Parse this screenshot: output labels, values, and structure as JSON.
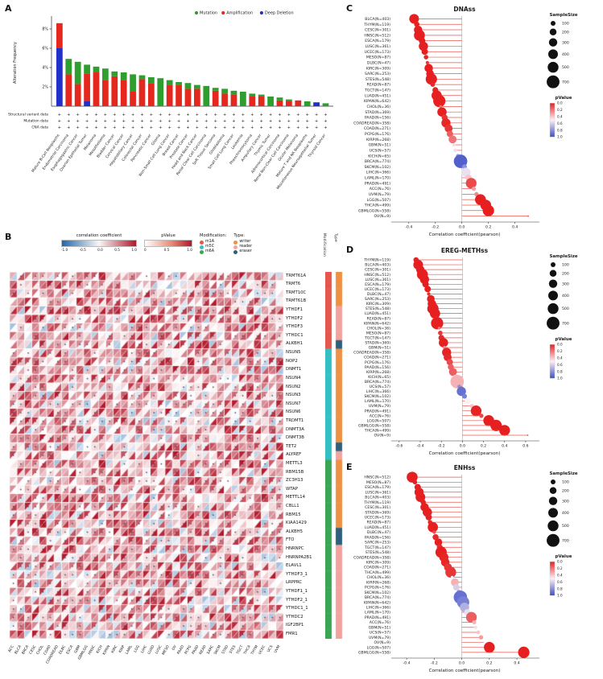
{
  "panels": {
    "a": "A",
    "b": "B",
    "c": "C",
    "d": "D",
    "e": "E"
  },
  "colors": {
    "mutation": "#2e9e2e",
    "amplification": "#e5281e",
    "deep_deletion": "#2330c8",
    "stem": "#e8564c",
    "p_low": "#e62020",
    "p_mid": "#fcf0f5",
    "p_high": "#3f50c8",
    "corr_neg": "#2166ac",
    "corr_zero": "#f7f7f7",
    "corr_pos": "#b2182b",
    "m1A": "#e4574e",
    "m5C": "#35bfc4",
    "m6A": "#3aa655",
    "writer": "#ef9143",
    "reader": "#f2a39d",
    "eraser": "#2e5f7d"
  },
  "chart_data": [
    {
      "id": "A",
      "type": "bar",
      "ylabel": "Alteration Frequency",
      "yticks": [
        "2%",
        "4%",
        "6%",
        "8%"
      ],
      "ymax_pct": 9,
      "legend": [
        "Mutation",
        "Amplification",
        "Deep Deletion"
      ],
      "marker_rows": [
        "Structural variant data",
        "Mutation data",
        "CNA data"
      ],
      "marker": "+",
      "categories": [
        "Mature B-Cell Neoplasms",
        "Endometrial Carcinoma",
        "Esophagogastric Cancer",
        "Ovarian Epithelial Tumor",
        "Melanoma",
        "Mesothelioma",
        "Bladder Cancer",
        "Cervical Cancer",
        "Hepatobiliary Cancer",
        "Colorectal Cancer",
        "Pancreatic Cancer",
        "Glioma",
        "Non-Small Cell Lung Cancer",
        "Breast Cancer",
        "Prostate Cancer",
        "Head and Neck Cancer",
        "Renal Clear Cell Carcinoma",
        "Soft Tissue Sarcoma",
        "Glioblastoma",
        "Small Cell Lung Cancer",
        "Leukemia",
        "Pheochromocytoma",
        "Ampullary Cancer",
        "Thymic Tumor",
        "Adrenocortical Carcinoma",
        "Renal Non-Clear Cell Carcinoma",
        "Ocular Melanoma",
        "Mature T and NK Neoplasms",
        "Miscellaneous Neuroepithelial Tumor",
        "Thyroid Cancer"
      ],
      "series": [
        {
          "name": "Mutation",
          "values": [
            0,
            1.6,
            2.3,
            0.9,
            0.6,
            1.2,
            0.5,
            0.8,
            1.8,
            0.4,
            0.6,
            2.9,
            0.5,
            0.3,
            0.6,
            0.4,
            2.1,
            0.3,
            0.5,
            0.4,
            1.5,
            0.3,
            0.2,
            1.0,
            0.3,
            0.2,
            0,
            0.5,
            0,
            0.3
          ]
        },
        {
          "name": "Amplification",
          "values": [
            2.6,
            3.3,
            2.3,
            2.9,
            3.5,
            2.7,
            3.1,
            2.7,
            1.5,
            2.8,
            2.4,
            0,
            2.2,
            2.2,
            1.8,
            1.8,
            0,
            1.6,
            1.3,
            1.2,
            0,
            1.0,
            1.0,
            0,
            0.6,
            0.5,
            0.6,
            0,
            0,
            0
          ]
        },
        {
          "name": "Deep Deletion",
          "values": [
            6.0,
            0,
            0,
            0.5,
            0,
            0,
            0,
            0,
            0,
            0,
            0,
            0,
            0,
            0,
            0,
            0,
            0,
            0,
            0,
            0,
            0,
            0,
            0,
            0,
            0,
            0,
            0,
            0,
            0.4,
            0
          ]
        }
      ]
    },
    {
      "id": "B",
      "type": "heatmap",
      "legend_corr_title": "correlation coefficient",
      "legend_corr_ticks": [
        "-1.0",
        "-0.5",
        "0.0",
        "0.5",
        "1.0"
      ],
      "legend_p_title": "pValue",
      "legend_p_ticks": [
        "0",
        "0.5",
        "1.0"
      ],
      "legend_mod_title": "Modification:",
      "legend_mods": [
        "m1A",
        "m5C",
        "m6A"
      ],
      "legend_type_title": "Type:",
      "legend_types": [
        "writer",
        "reader",
        "eraser"
      ],
      "strip_titles": [
        "Modification",
        "Type"
      ],
      "seed": 20240613,
      "genes": [
        [
          "TRMT61A",
          "m1A",
          "writer"
        ],
        [
          "TRMT6",
          "m1A",
          "writer"
        ],
        [
          "TRMT10C",
          "m1A",
          "writer"
        ],
        [
          "TRMT61B",
          "m1A",
          "writer"
        ],
        [
          "YTHDF1",
          "m1A",
          "reader"
        ],
        [
          "YTHDF2",
          "m1A",
          "reader"
        ],
        [
          "YTHDF3",
          "m1A",
          "reader"
        ],
        [
          "YTHDC1",
          "m1A",
          "reader"
        ],
        [
          "ALKBH1",
          "m1A",
          "eraser"
        ],
        [
          "NSUN5",
          "m5C",
          "writer"
        ],
        [
          "NOP2",
          "m5C",
          "writer"
        ],
        [
          "DNMT1",
          "m5C",
          "writer"
        ],
        [
          "NSUN4",
          "m5C",
          "writer"
        ],
        [
          "NSUN2",
          "m5C",
          "writer"
        ],
        [
          "NSUN3",
          "m5C",
          "writer"
        ],
        [
          "NSUN7",
          "m5C",
          "writer"
        ],
        [
          "NSUN6",
          "m5C",
          "writer"
        ],
        [
          "TRDMT1",
          "m5C",
          "writer"
        ],
        [
          "DNMT3A",
          "m5C",
          "writer"
        ],
        [
          "DNMT3B",
          "m5C",
          "writer"
        ],
        [
          "TET2",
          "m5C",
          "eraser"
        ],
        [
          "ALYREF",
          "m5C",
          "reader"
        ],
        [
          "METTL3",
          "m6A",
          "writer"
        ],
        [
          "RBM15B",
          "m6A",
          "writer"
        ],
        [
          "ZC3H13",
          "m6A",
          "writer"
        ],
        [
          "WTAP",
          "m6A",
          "writer"
        ],
        [
          "METTL14",
          "m6A",
          "writer"
        ],
        [
          "CBLL1",
          "m6A",
          "writer"
        ],
        [
          "RBM15",
          "m6A",
          "writer"
        ],
        [
          "KIAA1429",
          "m6A",
          "writer"
        ],
        [
          "ALKBH5",
          "m6A",
          "eraser"
        ],
        [
          "FTO",
          "m6A",
          "eraser"
        ],
        [
          "HNRNPC",
          "m6A",
          "reader"
        ],
        [
          "HNRNPA2B1",
          "m6A",
          "reader"
        ],
        [
          "ELAVL1",
          "m6A",
          "reader"
        ],
        [
          "YTHDF3_1",
          "m6A",
          "reader"
        ],
        [
          "LRPPRC",
          "m6A",
          "reader"
        ],
        [
          "YTHDF1_1",
          "m6A",
          "reader"
        ],
        [
          "YTHDF2_1",
          "m6A",
          "reader"
        ],
        [
          "YTHDC1_1",
          "m6A",
          "reader"
        ],
        [
          "YTHDC2",
          "m6A",
          "reader"
        ],
        [
          "IGF2BP1",
          "m6A",
          "reader"
        ],
        [
          "FMR1",
          "m6A",
          "reader"
        ]
      ],
      "columns": [
        "ACC",
        "BLCA",
        "BRCA",
        "CESC",
        "CHOL",
        "COAD",
        "COADREAD",
        "DLBC",
        "ESCA",
        "GBM",
        "GBMLGG",
        "HNSC",
        "KICH",
        "KIPAN",
        "KIRC",
        "KIRP",
        "LAML",
        "LGG",
        "LIHC",
        "LUAD",
        "LUSC",
        "MESO",
        "OV",
        "PAAD",
        "PCPG",
        "PRAD",
        "READ",
        "SARC",
        "SKCM",
        "STAD",
        "STES",
        "TGCT",
        "THCA",
        "THYM",
        "UCEC",
        "UCS",
        "UVM"
      ]
    },
    {
      "id": "C",
      "type": "scatter",
      "title": "DNAss",
      "xlabel": "Correlation coefficient(pearson)",
      "xmin": -0.52,
      "xmax": 0.56,
      "xticks": [
        -0.4,
        -0.2,
        0,
        0.2,
        0.4
      ],
      "legend_size_title": "SampleSize",
      "legend_sizes": [
        100,
        200,
        300,
        400,
        500,
        700
      ],
      "legend_p_title": "pValue",
      "legend_p_ticks": [
        "0.0",
        "0.2",
        "0.4",
        "0.6",
        "0.8",
        "1.0"
      ],
      "rows": [
        [
          "BLCA",
          403,
          -0.36,
          0
        ],
        [
          "THYM",
          119,
          -0.34,
          0
        ],
        [
          "CESC",
          301,
          -0.33,
          0
        ],
        [
          "HNSC",
          512,
          -0.32,
          0
        ],
        [
          "ESCA",
          179,
          -0.3,
          0
        ],
        [
          "LUSC",
          361,
          -0.29,
          0
        ],
        [
          "UCEC",
          173,
          -0.28,
          0
        ],
        [
          "MESO",
          87,
          -0.27,
          0.01
        ],
        [
          "DLBC",
          47,
          -0.26,
          0.05
        ],
        [
          "KIRC",
          309,
          -0.25,
          0
        ],
        [
          "SARC",
          253,
          -0.24,
          0
        ],
        [
          "STES",
          548,
          -0.23,
          0
        ],
        [
          "READ",
          87,
          -0.22,
          0.02
        ],
        [
          "TGCT",
          147,
          -0.2,
          0.01
        ],
        [
          "LUAD",
          451,
          -0.19,
          0
        ],
        [
          "KIPAN",
          642,
          -0.17,
          0
        ],
        [
          "CHOL",
          36,
          -0.16,
          0.2
        ],
        [
          "STAD",
          369,
          -0.15,
          0
        ],
        [
          "PAAD",
          156,
          -0.13,
          0.05
        ],
        [
          "COADREAD",
          358,
          -0.12,
          0.02
        ],
        [
          "COAD",
          271,
          -0.1,
          0.05
        ],
        [
          "PCPG",
          176,
          -0.09,
          0.15
        ],
        [
          "KIRP",
          268,
          -0.07,
          0.2
        ],
        [
          "GBM",
          51,
          -0.06,
          0.45
        ],
        [
          "UCS",
          57,
          -0.05,
          0.55
        ],
        [
          "KICH",
          65,
          -0.03,
          0.75
        ],
        [
          "BRCA",
          774,
          -0.01,
          0.95
        ],
        [
          "SKCM",
          102,
          0.02,
          0.8
        ],
        [
          "LIHC",
          366,
          0.03,
          0.55
        ],
        [
          "LAML",
          170,
          0.05,
          0.4
        ],
        [
          "PRAD",
          491,
          0.07,
          0.1
        ],
        [
          "ACC",
          76,
          0.09,
          0.3
        ],
        [
          "UVM",
          79,
          0.11,
          0.25
        ],
        [
          "LGG",
          507,
          0.14,
          0
        ],
        [
          "THCA",
          499,
          0.18,
          0
        ],
        [
          "GBMLGG",
          558,
          0.2,
          0
        ],
        [
          "OV",
          9,
          0.5,
          0.1
        ]
      ]
    },
    {
      "id": "D",
      "type": "scatter",
      "title": "EREG-METHss",
      "xlabel": "Correlation coefficient(pearson)",
      "xmin": -0.66,
      "xmax": 0.7,
      "xticks": [
        -0.6,
        -0.4,
        -0.2,
        0,
        0.2,
        0.4,
        0.6
      ],
      "legend_size_title": "SampleSize",
      "legend_sizes": [
        100,
        200,
        300,
        400,
        500,
        700
      ],
      "legend_p_title": "pValue",
      "legend_p_ticks": [
        "0.0",
        "0.2",
        "0.4",
        "0.6",
        "0.8",
        "1.0"
      ],
      "rows": [
        [
          "THYM",
          119,
          -0.44,
          0
        ],
        [
          "BLCA",
          403,
          -0.42,
          0
        ],
        [
          "CESC",
          301,
          -0.4,
          0
        ],
        [
          "HNSC",
          512,
          -0.38,
          0
        ],
        [
          "LUSC",
          361,
          -0.36,
          0
        ],
        [
          "ESCA",
          179,
          -0.35,
          0
        ],
        [
          "UCEC",
          173,
          -0.33,
          0
        ],
        [
          "DLBC",
          47,
          -0.32,
          0.03
        ],
        [
          "SARC",
          253,
          -0.3,
          0
        ],
        [
          "KIRC",
          309,
          -0.29,
          0
        ],
        [
          "STES",
          548,
          -0.28,
          0
        ],
        [
          "LUAD",
          451,
          -0.26,
          0
        ],
        [
          "READ",
          87,
          -0.25,
          0.02
        ],
        [
          "KIPAN",
          642,
          -0.24,
          0
        ],
        [
          "CHOL",
          36,
          -0.22,
          0.2
        ],
        [
          "MESO",
          87,
          -0.21,
          0.05
        ],
        [
          "TGCT",
          147,
          -0.2,
          0.02
        ],
        [
          "STAD",
          369,
          -0.18,
          0
        ],
        [
          "GBM",
          51,
          -0.17,
          0.25
        ],
        [
          "COADREAD",
          358,
          -0.15,
          0.01
        ],
        [
          "COAD",
          271,
          -0.14,
          0.02
        ],
        [
          "PCPG",
          176,
          -0.12,
          0.1
        ],
        [
          "PAAD",
          156,
          -0.11,
          0.15
        ],
        [
          "KIRP",
          268,
          -0.09,
          0.15
        ],
        [
          "KICH",
          65,
          -0.07,
          0.55
        ],
        [
          "BRCA",
          774,
          -0.05,
          0.35
        ],
        [
          "UCS",
          57,
          -0.03,
          0.8
        ],
        [
          "LIHC",
          366,
          -0.01,
          0.9
        ],
        [
          "SKCM",
          102,
          0.02,
          0.85
        ],
        [
          "LAML",
          170,
          0.05,
          0.5
        ],
        [
          "UVM",
          79,
          0.09,
          0.4
        ],
        [
          "PRAD",
          491,
          0.13,
          0.01
        ],
        [
          "ACC",
          76,
          0.18,
          0.1
        ],
        [
          "LGG",
          507,
          0.25,
          0
        ],
        [
          "GBMLGG",
          558,
          0.32,
          0
        ],
        [
          "THCA",
          499,
          0.4,
          0
        ],
        [
          "OV",
          9,
          0.62,
          0.1
        ]
      ]
    },
    {
      "id": "E",
      "type": "scatter",
      "title": "ENHss",
      "xlabel": "Correlation coefficient(pearson)",
      "xmin": -0.5,
      "xmax": 0.54,
      "xticks": [
        -0.4,
        -0.2,
        0,
        0.2,
        0.4
      ],
      "legend_size_title": "SampleSize",
      "legend_sizes": [
        100,
        200,
        300,
        400,
        500,
        700
      ],
      "legend_p_title": "pValue",
      "legend_p_ticks": [
        "0.0",
        "0.2",
        "0.4",
        "0.6",
        "0.8",
        "1.0"
      ],
      "rows": [
        [
          "HNSC",
          512,
          -0.36,
          0
        ],
        [
          "MESO",
          87,
          -0.34,
          0
        ],
        [
          "ESCA",
          179,
          -0.32,
          0
        ],
        [
          "LUSC",
          361,
          -0.31,
          0
        ],
        [
          "BLCA",
          403,
          -0.3,
          0
        ],
        [
          "THYM",
          119,
          -0.28,
          0
        ],
        [
          "CESC",
          301,
          -0.27,
          0
        ],
        [
          "STAD",
          369,
          -0.25,
          0
        ],
        [
          "UCEC",
          173,
          -0.24,
          0
        ],
        [
          "READ",
          87,
          -0.23,
          0.02
        ],
        [
          "LUAD",
          451,
          -0.21,
          0
        ],
        [
          "DLBC",
          47,
          -0.2,
          0.1
        ],
        [
          "PAAD",
          156,
          -0.19,
          0.02
        ],
        [
          "SARC",
          253,
          -0.17,
          0
        ],
        [
          "TGCT",
          147,
          -0.16,
          0.03
        ],
        [
          "STES",
          548,
          -0.15,
          0
        ],
        [
          "COADREAD",
          358,
          -0.13,
          0.01
        ],
        [
          "KIRC",
          309,
          -0.12,
          0.02
        ],
        [
          "COAD",
          271,
          -0.1,
          0.05
        ],
        [
          "THCA",
          499,
          -0.08,
          0.05
        ],
        [
          "CHOL",
          36,
          -0.07,
          0.5
        ],
        [
          "KIRP",
          268,
          -0.05,
          0.35
        ],
        [
          "PCPG",
          176,
          -0.04,
          0.6
        ],
        [
          "SKCM",
          102,
          -0.02,
          0.8
        ],
        [
          "BRCA",
          774,
          -0.01,
          0.9
        ],
        [
          "KIPAN",
          642,
          0.01,
          0.85
        ],
        [
          "LIHC",
          366,
          0.02,
          0.7
        ],
        [
          "LAML",
          170,
          0.04,
          0.55
        ],
        [
          "PRAD",
          491,
          0.07,
          0.15
        ],
        [
          "ACC",
          76,
          0.09,
          0.35
        ],
        [
          "GBM",
          51,
          0.1,
          0.45
        ],
        [
          "UCS",
          57,
          0.12,
          0.4
        ],
        [
          "UVM",
          79,
          0.14,
          0.3
        ],
        [
          "OV",
          9,
          0.16,
          0.6
        ],
        [
          "LGG",
          507,
          0.2,
          0
        ],
        [
          "GBMLGG",
          558,
          0.45,
          0
        ]
      ]
    }
  ]
}
